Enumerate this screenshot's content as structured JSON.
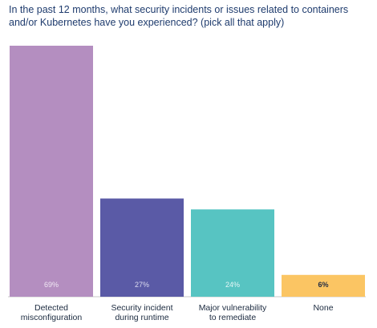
{
  "chart_data": {
    "type": "bar",
    "title": "In the past 12 months, what security incidents or issues related to containers and/or Kubernetes have you experienced? (pick all that apply)",
    "categories": [
      [
        "Detected",
        "misconfiguration"
      ],
      [
        "Security incident",
        "during runtime"
      ],
      [
        "Major vulnerability",
        "to remediate"
      ],
      [
        "None"
      ]
    ],
    "values": [
      69,
      27,
      24,
      6
    ],
    "value_labels": [
      "69%",
      "27%",
      "24%",
      "6%"
    ],
    "colors": [
      "#b48ec0",
      "#5a5aa6",
      "#57c4c2",
      "#fbc563"
    ],
    "label_colors": [
      "#f1e8f4",
      "#dcdcf0",
      "#e6f7f7",
      "#1f2a44"
    ],
    "ylim": [
      0,
      69
    ],
    "grid": false,
    "legend": "none"
  }
}
